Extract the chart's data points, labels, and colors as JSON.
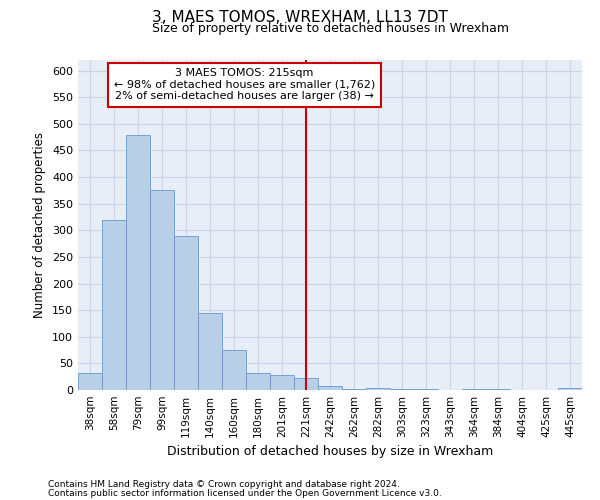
{
  "title": "3, MAES TOMOS, WREXHAM, LL13 7DT",
  "subtitle": "Size of property relative to detached houses in Wrexham",
  "xlabel": "Distribution of detached houses by size in Wrexham",
  "ylabel": "Number of detached properties",
  "bar_labels": [
    "38sqm",
    "58sqm",
    "79sqm",
    "99sqm",
    "119sqm",
    "140sqm",
    "160sqm",
    "180sqm",
    "201sqm",
    "221sqm",
    "242sqm",
    "262sqm",
    "282sqm",
    "303sqm",
    "323sqm",
    "343sqm",
    "364sqm",
    "384sqm",
    "404sqm",
    "425sqm",
    "445sqm"
  ],
  "bar_values": [
    32,
    320,
    480,
    375,
    290,
    145,
    75,
    32,
    28,
    22,
    8,
    2,
    3,
    2,
    2,
    0,
    2,
    2,
    0,
    0,
    3
  ],
  "bar_color": "#b8cfe8",
  "bar_edge_color": "#6699cc",
  "grid_color": "#c8d4e8",
  "bg_color": "#e8eef8",
  "vline_index": 9,
  "vline_label": "3 MAES TOMOS: 215sqm",
  "annotation_line1": "← 98% of detached houses are smaller (1,762)",
  "annotation_line2": "2% of semi-detached houses are larger (38) →",
  "annotation_box_color": "#ffffff",
  "annotation_box_edge": "#cc0000",
  "vline_color": "#cc0000",
  "ylim": [
    0,
    620
  ],
  "yticks": [
    0,
    50,
    100,
    150,
    200,
    250,
    300,
    350,
    400,
    450,
    500,
    550,
    600
  ],
  "footnote1": "Contains HM Land Registry data © Crown copyright and database right 2024.",
  "footnote2": "Contains public sector information licensed under the Open Government Licence v3.0."
}
